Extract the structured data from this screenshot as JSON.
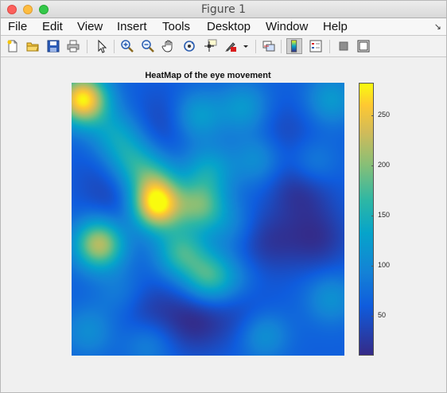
{
  "window": {
    "title": "Figure 1"
  },
  "menubar": {
    "items": [
      "File",
      "Edit",
      "View",
      "Insert",
      "Tools",
      "Desktop",
      "Window",
      "Help"
    ]
  },
  "toolbar": {
    "icons": [
      "new-figure-icon",
      "open-file-icon",
      "save-icon",
      "print-icon",
      "edit-plot-arrow-icon",
      "zoom-in-icon",
      "zoom-out-icon",
      "pan-hand-icon",
      "rotate-3d-icon",
      "data-cursor-icon",
      "brush-icon",
      "brush-dropdown-icon",
      "link-plot-icon",
      "insert-colorbar-icon",
      "insert-legend-icon",
      "hide-plot-tools-icon",
      "show-plot-tools-icon"
    ],
    "active": "insert-colorbar-icon"
  },
  "chart_data": {
    "type": "heatmap",
    "title": "HeatMap of the eye movement",
    "colormap": "parula",
    "clim": [
      10,
      283
    ],
    "colorbar_ticks": [
      "50",
      "100",
      "150",
      "200",
      "250"
    ],
    "hotspots": [
      {
        "x": 0.04,
        "y": 0.06,
        "value": 280
      },
      {
        "x": 0.31,
        "y": 0.45,
        "value": 265
      },
      {
        "x": 0.1,
        "y": 0.59,
        "value": 225
      },
      {
        "x": 0.47,
        "y": 0.45,
        "value": 175
      },
      {
        "x": 0.5,
        "y": 0.71,
        "value": 165
      },
      {
        "x": 0.4,
        "y": 0.62,
        "value": 160
      },
      {
        "x": 0.3,
        "y": 0.36,
        "value": 140
      },
      {
        "x": 0.22,
        "y": 0.29,
        "value": 135
      },
      {
        "x": 0.46,
        "y": 0.12,
        "value": 130
      },
      {
        "x": 0.5,
        "y": 0.32,
        "value": 130
      },
      {
        "x": 0.16,
        "y": 0.19,
        "value": 125
      },
      {
        "x": 0.63,
        "y": 0.09,
        "value": 120
      },
      {
        "x": 0.95,
        "y": 0.06,
        "value": 120
      },
      {
        "x": 0.68,
        "y": 0.28,
        "value": 110
      },
      {
        "x": 0.88,
        "y": 0.3,
        "value": 105
      },
      {
        "x": 0.7,
        "y": 0.92,
        "value": 120
      },
      {
        "x": 0.95,
        "y": 0.79,
        "value": 110
      },
      {
        "x": 0.06,
        "y": 0.91,
        "value": 105
      },
      {
        "x": 0.28,
        "y": 0.95,
        "value": 100
      },
      {
        "x": 0.58,
        "y": 0.52,
        "value": 95
      },
      {
        "x": 0.18,
        "y": 0.77,
        "value": 90
      },
      {
        "x": 0.6,
        "y": 0.72,
        "value": 85
      }
    ],
    "coldspots": [
      {
        "x": 0.84,
        "y": 0.38,
        "value": 15
      },
      {
        "x": 0.9,
        "y": 0.57,
        "value": 20
      },
      {
        "x": 0.72,
        "y": 0.58,
        "value": 25
      },
      {
        "x": 0.45,
        "y": 0.87,
        "value": 15
      },
      {
        "x": 0.28,
        "y": 0.84,
        "value": 30
      },
      {
        "x": 0.64,
        "y": 0.86,
        "value": 35
      },
      {
        "x": 0.35,
        "y": 0.14,
        "value": 35
      },
      {
        "x": 0.18,
        "y": 0.45,
        "value": 40
      },
      {
        "x": 0.78,
        "y": 0.18,
        "value": 40
      },
      {
        "x": 0.12,
        "y": 0.35,
        "value": 45
      }
    ]
  }
}
